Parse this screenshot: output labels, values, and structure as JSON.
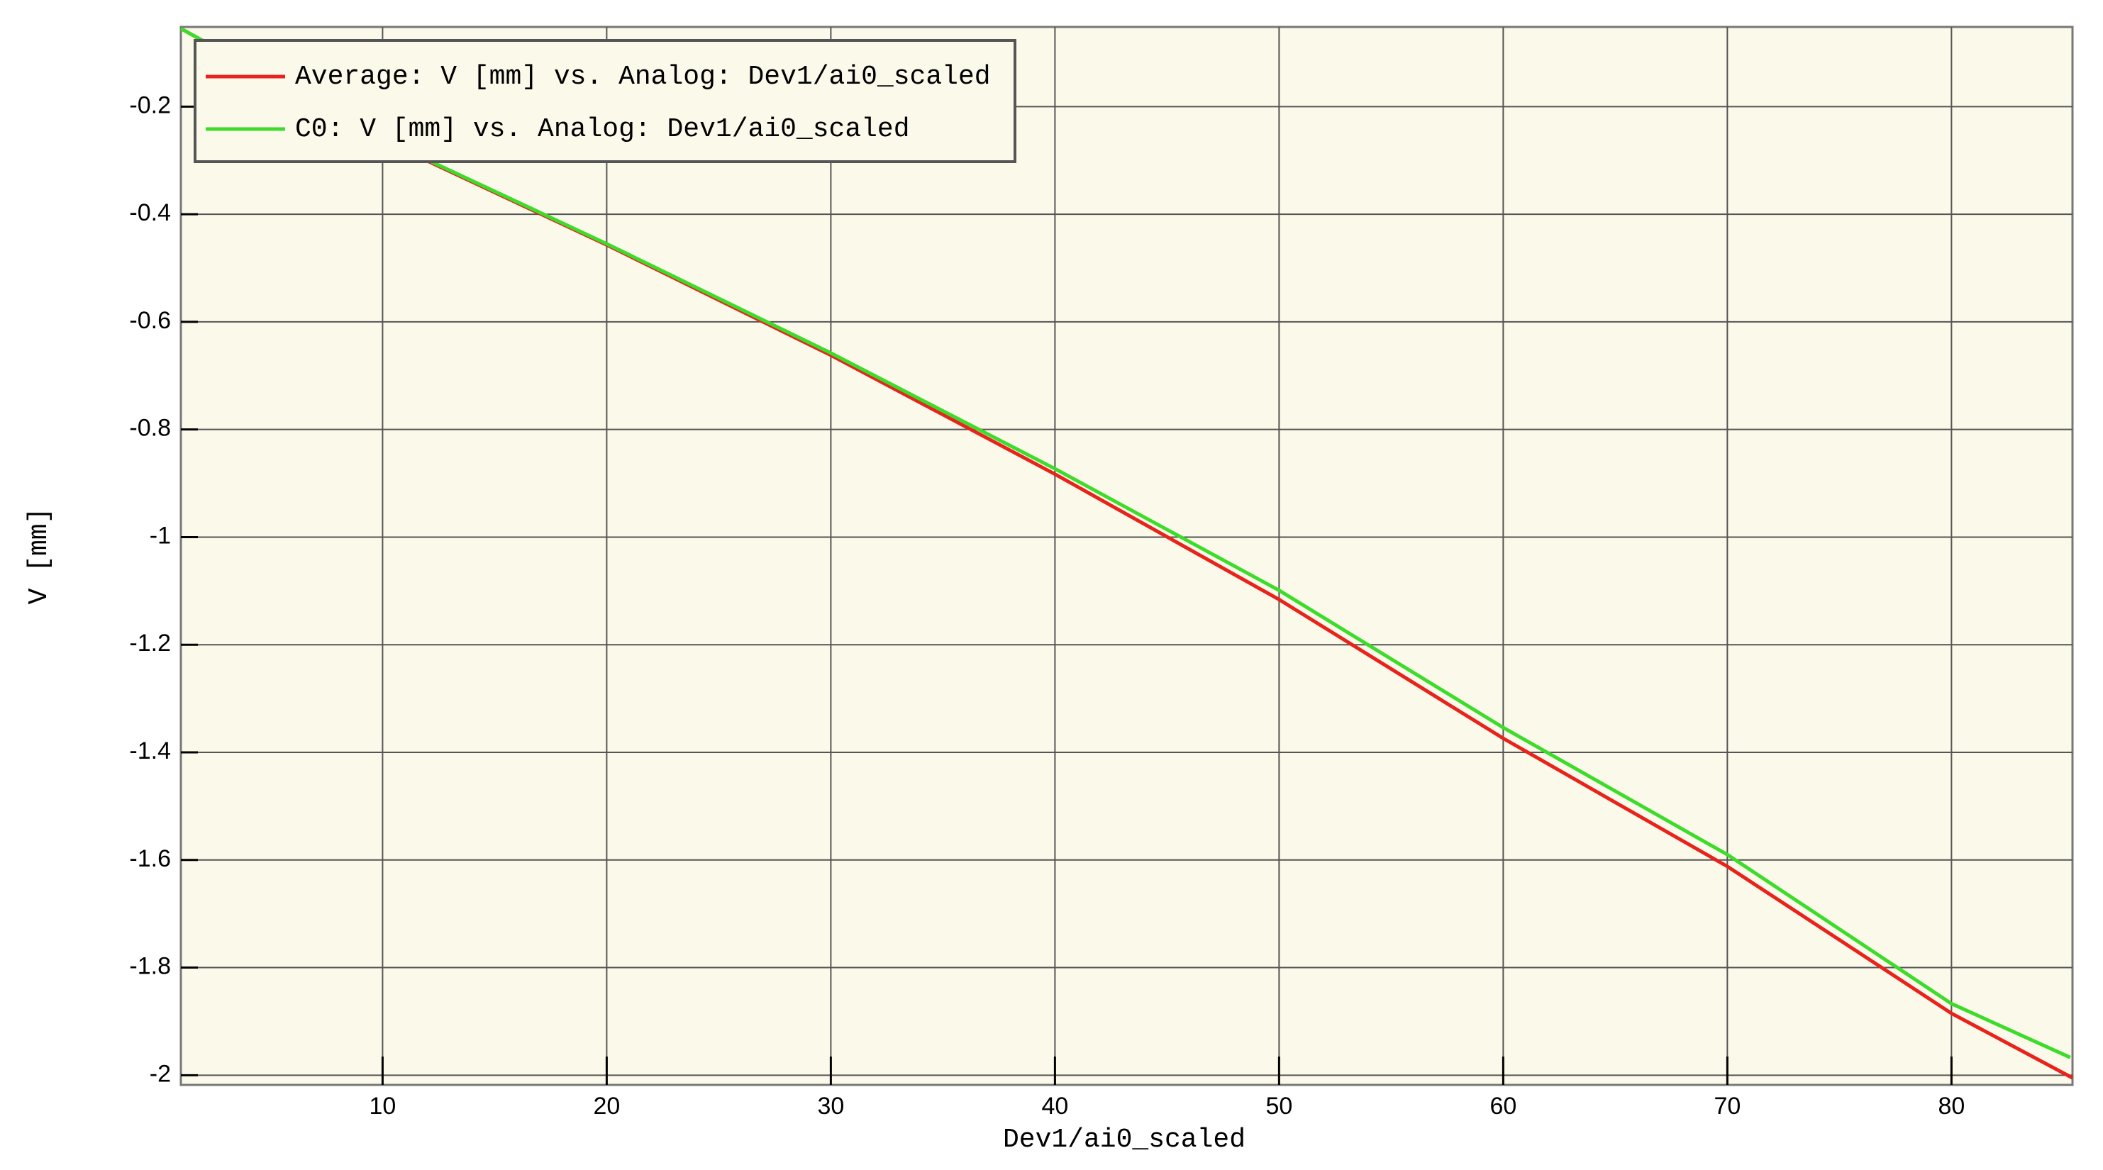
{
  "chart_data": {
    "type": "line",
    "x_label": "Dev1/ai0_scaled",
    "y_label": "V [mm]",
    "series": [
      {
        "name": "Average: V [mm] vs. Analog: Dev1/ai0_scaled",
        "color": "#e8231c",
        "x": [
          1,
          10,
          20,
          30,
          40,
          50,
          60,
          70,
          80,
          85.4
        ],
        "values": [
          -0.055,
          -0.262,
          -0.457,
          -0.662,
          -0.883,
          -1.116,
          -1.374,
          -1.612,
          -1.885,
          -2.005
        ]
      },
      {
        "name": "C0: V [mm] vs. Analog: Dev1/ai0_scaled",
        "color": "#3ddc2b",
        "x": [
          1,
          10,
          20,
          30,
          40,
          50,
          60,
          70,
          80,
          85.3
        ],
        "values": [
          -0.055,
          -0.26,
          -0.455,
          -0.658,
          -0.873,
          -1.099,
          -1.354,
          -1.59,
          -1.867,
          -1.967
        ]
      }
    ],
    "xlim": [
      1,
      85.4
    ],
    "ylim": [
      -2.018,
      -0.052
    ],
    "xticks": [
      10,
      20,
      30,
      40,
      50,
      60,
      70,
      80
    ],
    "yticks": [
      -0.2,
      -0.4,
      -0.6,
      -0.8,
      -1,
      -1.2,
      -1.4,
      -1.6,
      -1.8,
      -2
    ],
    "grid": true,
    "legend": "upper-left"
  }
}
